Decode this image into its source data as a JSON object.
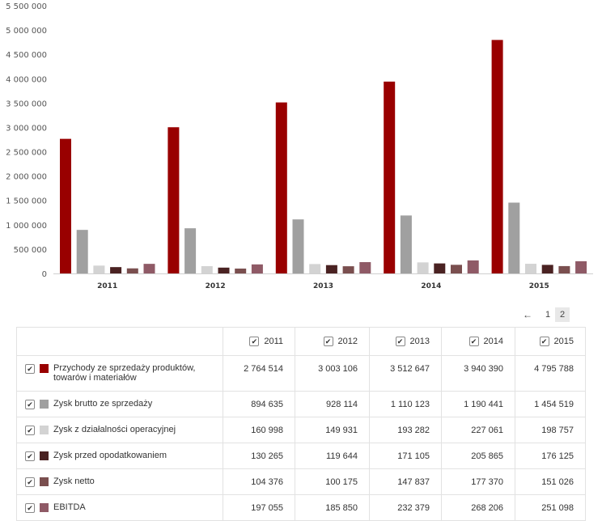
{
  "chart_data": {
    "type": "bar",
    "categories": [
      "2011",
      "2012",
      "2013",
      "2014",
      "2015"
    ],
    "series": [
      {
        "name": "Przychody ze sprzedaży produktów, towarów i materiałów",
        "color": "#990000",
        "values": [
          2764514,
          3003106,
          3512647,
          3940390,
          4795788
        ]
      },
      {
        "name": "Zysk brutto ze sprzedaży",
        "color": "#a0a0a0",
        "values": [
          894635,
          928114,
          1110123,
          1190441,
          1454519
        ]
      },
      {
        "name": "Zysk z działalności operacyjnej",
        "color": "#d3d3d3",
        "values": [
          160998,
          149931,
          193282,
          227061,
          198757
        ]
      },
      {
        "name": "Zysk przed opodatkowaniem",
        "color": "#4a2222",
        "values": [
          130265,
          119644,
          171105,
          205865,
          176125
        ]
      },
      {
        "name": "Zysk netto",
        "color": "#7a4f4f",
        "values": [
          104376,
          100175,
          147837,
          177370,
          151026
        ]
      },
      {
        "name": "EBITDA",
        "color": "#8f5a66",
        "values": [
          197055,
          185850,
          232379,
          268206,
          251098
        ]
      }
    ],
    "yticks": [
      "0",
      "500 000",
      "1 000 000",
      "1 500 000",
      "2 000 000",
      "2 500 000",
      "3 000 000",
      "3 500 000",
      "4 000 000",
      "4 500 000",
      "5 000 000",
      "5 500 000"
    ],
    "ylim": [
      0,
      5500000
    ],
    "grid": false,
    "title": "",
    "xlabel": "",
    "ylabel": ""
  },
  "pager": {
    "arrow": "←",
    "pages": [
      "1",
      "2"
    ],
    "active": "2"
  },
  "table": {
    "years": [
      "2011",
      "2012",
      "2013",
      "2014",
      "2015"
    ],
    "checkmark": "✔",
    "rows": [
      {
        "label": "Przychody ze sprzedaży produktów, towarów i materiałów",
        "color": "#990000",
        "values": [
          "2 764 514",
          "3 003 106",
          "3 512 647",
          "3 940 390",
          "4 795 788"
        ]
      },
      {
        "label": "Zysk brutto ze sprzedaży",
        "color": "#a0a0a0",
        "values": [
          "894 635",
          "928 114",
          "1 110 123",
          "1 190 441",
          "1 454 519"
        ]
      },
      {
        "label": "Zysk z działalności operacyjnej",
        "color": "#d3d3d3",
        "values": [
          "160 998",
          "149 931",
          "193 282",
          "227 061",
          "198 757"
        ]
      },
      {
        "label": "Zysk przed opodatkowaniem",
        "color": "#4a2222",
        "values": [
          "130 265",
          "119 644",
          "171 105",
          "205 865",
          "176 125"
        ]
      },
      {
        "label": "Zysk netto",
        "color": "#7a4f4f",
        "values": [
          "104 376",
          "100 175",
          "147 837",
          "177 370",
          "151 026"
        ]
      },
      {
        "label": "EBITDA",
        "color": "#8f5a66",
        "values": [
          "197 055",
          "185 850",
          "232 379",
          "268 206",
          "251 098"
        ]
      }
    ]
  }
}
